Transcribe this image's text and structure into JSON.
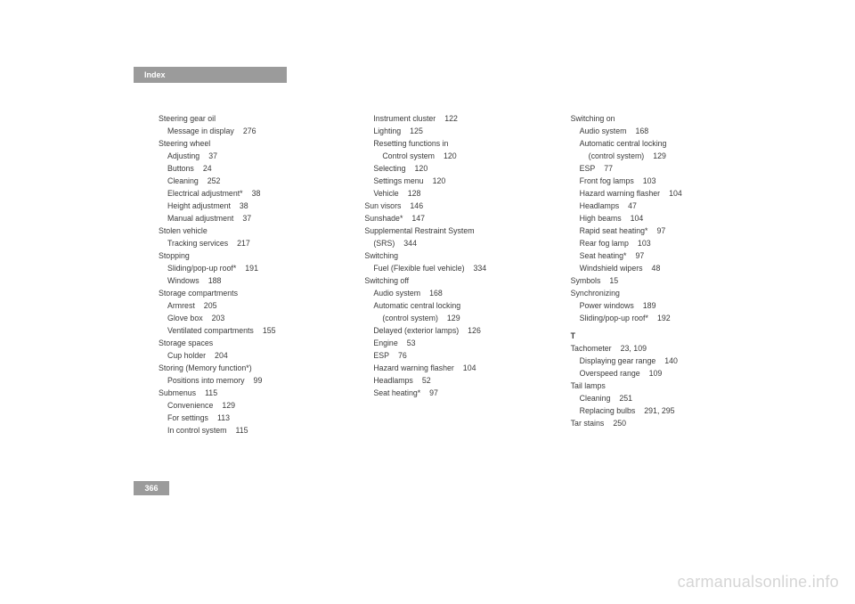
{
  "header_title": "Index",
  "page_number": "366",
  "watermark": "carmanualsonline.info",
  "columns": [
    [
      {
        "indent": 1,
        "text": "Steering gear oil"
      },
      {
        "indent": 2,
        "text": "Message in display",
        "page": "276"
      },
      {
        "indent": 1,
        "text": "Steering wheel"
      },
      {
        "indent": 2,
        "text": "Adjusting",
        "page": "37"
      },
      {
        "indent": 2,
        "text": "Buttons",
        "page": "24"
      },
      {
        "indent": 2,
        "text": "Cleaning",
        "page": "252"
      },
      {
        "indent": 2,
        "text": "Electrical adjustment*",
        "page": "38"
      },
      {
        "indent": 2,
        "text": "Height adjustment",
        "page": "38"
      },
      {
        "indent": 2,
        "text": "Manual adjustment",
        "page": "37"
      },
      {
        "indent": 1,
        "text": "Stolen vehicle"
      },
      {
        "indent": 2,
        "text": "Tracking services",
        "page": "217"
      },
      {
        "indent": 1,
        "text": "Stopping"
      },
      {
        "indent": 2,
        "text": "Sliding/pop-up roof*",
        "page": "191"
      },
      {
        "indent": 2,
        "text": "Windows",
        "page": "188"
      },
      {
        "indent": 1,
        "text": "Storage compartments"
      },
      {
        "indent": 2,
        "text": "Armrest",
        "page": "205"
      },
      {
        "indent": 2,
        "text": "Glove box",
        "page": "203"
      },
      {
        "indent": 2,
        "text": "Ventilated compartments",
        "page": "155"
      },
      {
        "indent": 1,
        "text": "Storage spaces"
      },
      {
        "indent": 2,
        "text": "Cup holder",
        "page": "204"
      },
      {
        "indent": 1,
        "text": "Storing (Memory function*)"
      },
      {
        "indent": 2,
        "text": "Positions into memory",
        "page": "99"
      },
      {
        "indent": 1,
        "text": "Submenus",
        "page": "115"
      },
      {
        "indent": 2,
        "text": "Convenience",
        "page": "129"
      },
      {
        "indent": 2,
        "text": "For settings",
        "page": "113"
      },
      {
        "indent": 2,
        "text": "In control system",
        "page": "115"
      }
    ],
    [
      {
        "indent": 2,
        "text": "Instrument cluster",
        "page": "122"
      },
      {
        "indent": 2,
        "text": "Lighting",
        "page": "125"
      },
      {
        "indent": 2,
        "text": "Resetting functions in"
      },
      {
        "indent": 3,
        "text": "Control system",
        "page": "120"
      },
      {
        "indent": 2,
        "text": "Selecting",
        "page": "120"
      },
      {
        "indent": 2,
        "text": "Settings menu",
        "page": "120"
      },
      {
        "indent": 2,
        "text": "Vehicle",
        "page": "128"
      },
      {
        "indent": 1,
        "text": "Sun visors",
        "page": "146"
      },
      {
        "indent": 1,
        "text": "Sunshade*",
        "page": "147"
      },
      {
        "indent": 1,
        "text": "Supplemental Restraint System"
      },
      {
        "indent": 2,
        "text": "(SRS)",
        "page": "344"
      },
      {
        "indent": 1,
        "text": "Switching"
      },
      {
        "indent": 2,
        "text": "Fuel (Flexible fuel vehicle)",
        "page": "334"
      },
      {
        "indent": 1,
        "text": "Switching off"
      },
      {
        "indent": 2,
        "text": "Audio system",
        "page": "168"
      },
      {
        "indent": 2,
        "text": "Automatic central locking"
      },
      {
        "indent": 3,
        "text": "(control system)",
        "page": "129"
      },
      {
        "indent": 2,
        "text": "Delayed (exterior lamps)",
        "page": "126"
      },
      {
        "indent": 2,
        "text": "Engine",
        "page": "53"
      },
      {
        "indent": 2,
        "text": "ESP",
        "page": "76"
      },
      {
        "indent": 2,
        "text": "Hazard warning flasher",
        "page": "104"
      },
      {
        "indent": 2,
        "text": "Headlamps",
        "page": "52"
      },
      {
        "indent": 2,
        "text": "Seat heating*",
        "page": "97"
      }
    ],
    [
      {
        "indent": 1,
        "text": "Switching on"
      },
      {
        "indent": 2,
        "text": "Audio system",
        "page": "168"
      },
      {
        "indent": 2,
        "text": "Automatic central locking"
      },
      {
        "indent": 3,
        "text": "(control system)",
        "page": "129"
      },
      {
        "indent": 2,
        "text": "ESP",
        "page": "77"
      },
      {
        "indent": 2,
        "text": "Front fog lamps",
        "page": "103"
      },
      {
        "indent": 2,
        "text": "Hazard warning flasher",
        "page": "104"
      },
      {
        "indent": 2,
        "text": "Headlamps",
        "page": "47"
      },
      {
        "indent": 2,
        "text": "High beams",
        "page": "104"
      },
      {
        "indent": 2,
        "text": "Rapid seat heating*",
        "page": "97"
      },
      {
        "indent": 2,
        "text": "Rear fog lamp",
        "page": "103"
      },
      {
        "indent": 2,
        "text": "Seat heating*",
        "page": "97"
      },
      {
        "indent": 2,
        "text": "Windshield wipers",
        "page": "48"
      },
      {
        "indent": 1,
        "text": "Symbols",
        "page": "15"
      },
      {
        "indent": 1,
        "text": "Synchronizing"
      },
      {
        "indent": 2,
        "text": "Power windows",
        "page": "189"
      },
      {
        "indent": 2,
        "text": "Sliding/pop-up roof*",
        "page": "192"
      },
      {
        "indent": 1,
        "text": "T",
        "section": true
      },
      {
        "indent": 1,
        "text": "Tachometer",
        "page": "23, 109"
      },
      {
        "indent": 2,
        "text": "Displaying gear range",
        "page": "140"
      },
      {
        "indent": 2,
        "text": "Overspeed range",
        "page": "109"
      },
      {
        "indent": 1,
        "text": "Tail lamps"
      },
      {
        "indent": 2,
        "text": "Cleaning",
        "page": "251"
      },
      {
        "indent": 2,
        "text": "Replacing bulbs",
        "page": "291, 295"
      },
      {
        "indent": 1,
        "text": "Tar stains",
        "page": "250"
      }
    ]
  ]
}
